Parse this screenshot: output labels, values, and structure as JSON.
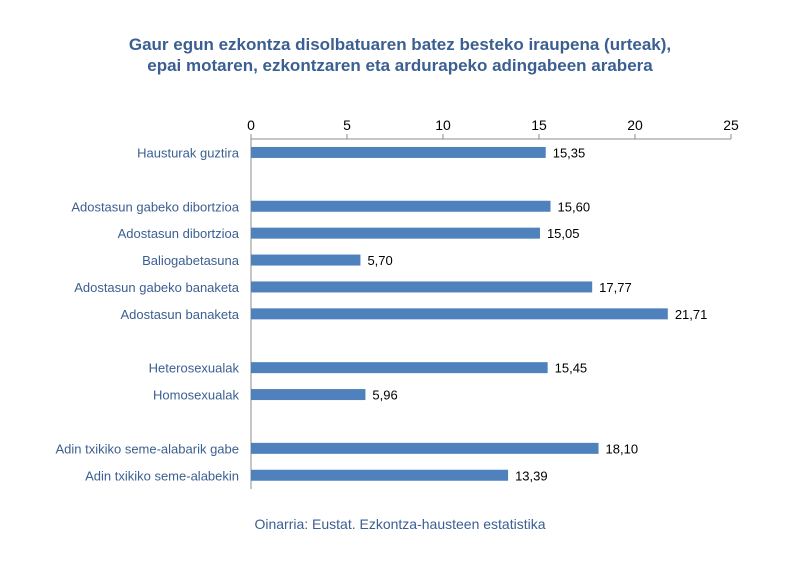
{
  "chart_data": {
    "type": "bar",
    "orientation": "horizontal",
    "title_lines": [
      "Gaur egun ezkontza disolbatuaren batez besteko iraupena (urteak),",
      "epai motaren, ezkontzaren eta ardurapeko adingabeen arabera"
    ],
    "xlim": [
      0,
      25
    ],
    "xticks": [
      0,
      5,
      10,
      15,
      20,
      25
    ],
    "axis_position": "top",
    "grid": false,
    "bar_color": "#4f81bd",
    "groups": [
      {
        "categories": [
          "Hausturak guztira"
        ],
        "values": [
          15.35
        ],
        "labels": [
          "15,35"
        ]
      },
      {
        "categories": [
          "Adostasun gabeko dibortzioa",
          "Adostasun dibortzioa",
          "Baliogabetasuna",
          "Adostasun gabeko banaketa",
          "Adostasun banaketa"
        ],
        "values": [
          15.6,
          15.05,
          5.7,
          17.77,
          21.71
        ],
        "labels": [
          "15,60",
          "15,05",
          "5,70",
          "17,77",
          "21,71"
        ]
      },
      {
        "categories": [
          "Heterosexualak",
          "Homosexualak"
        ],
        "values": [
          15.45,
          5.96
        ],
        "labels": [
          "15,45",
          "5,96"
        ]
      },
      {
        "categories": [
          "Adin txikiko seme-alabarik gabe",
          "Adin txikiko seme-alabekin"
        ],
        "values": [
          18.1,
          13.39
        ],
        "labels": [
          "18,10",
          "13,39"
        ]
      }
    ]
  },
  "source": "Oinarria: Eustat. Ezkontza-hausteen estatistika"
}
